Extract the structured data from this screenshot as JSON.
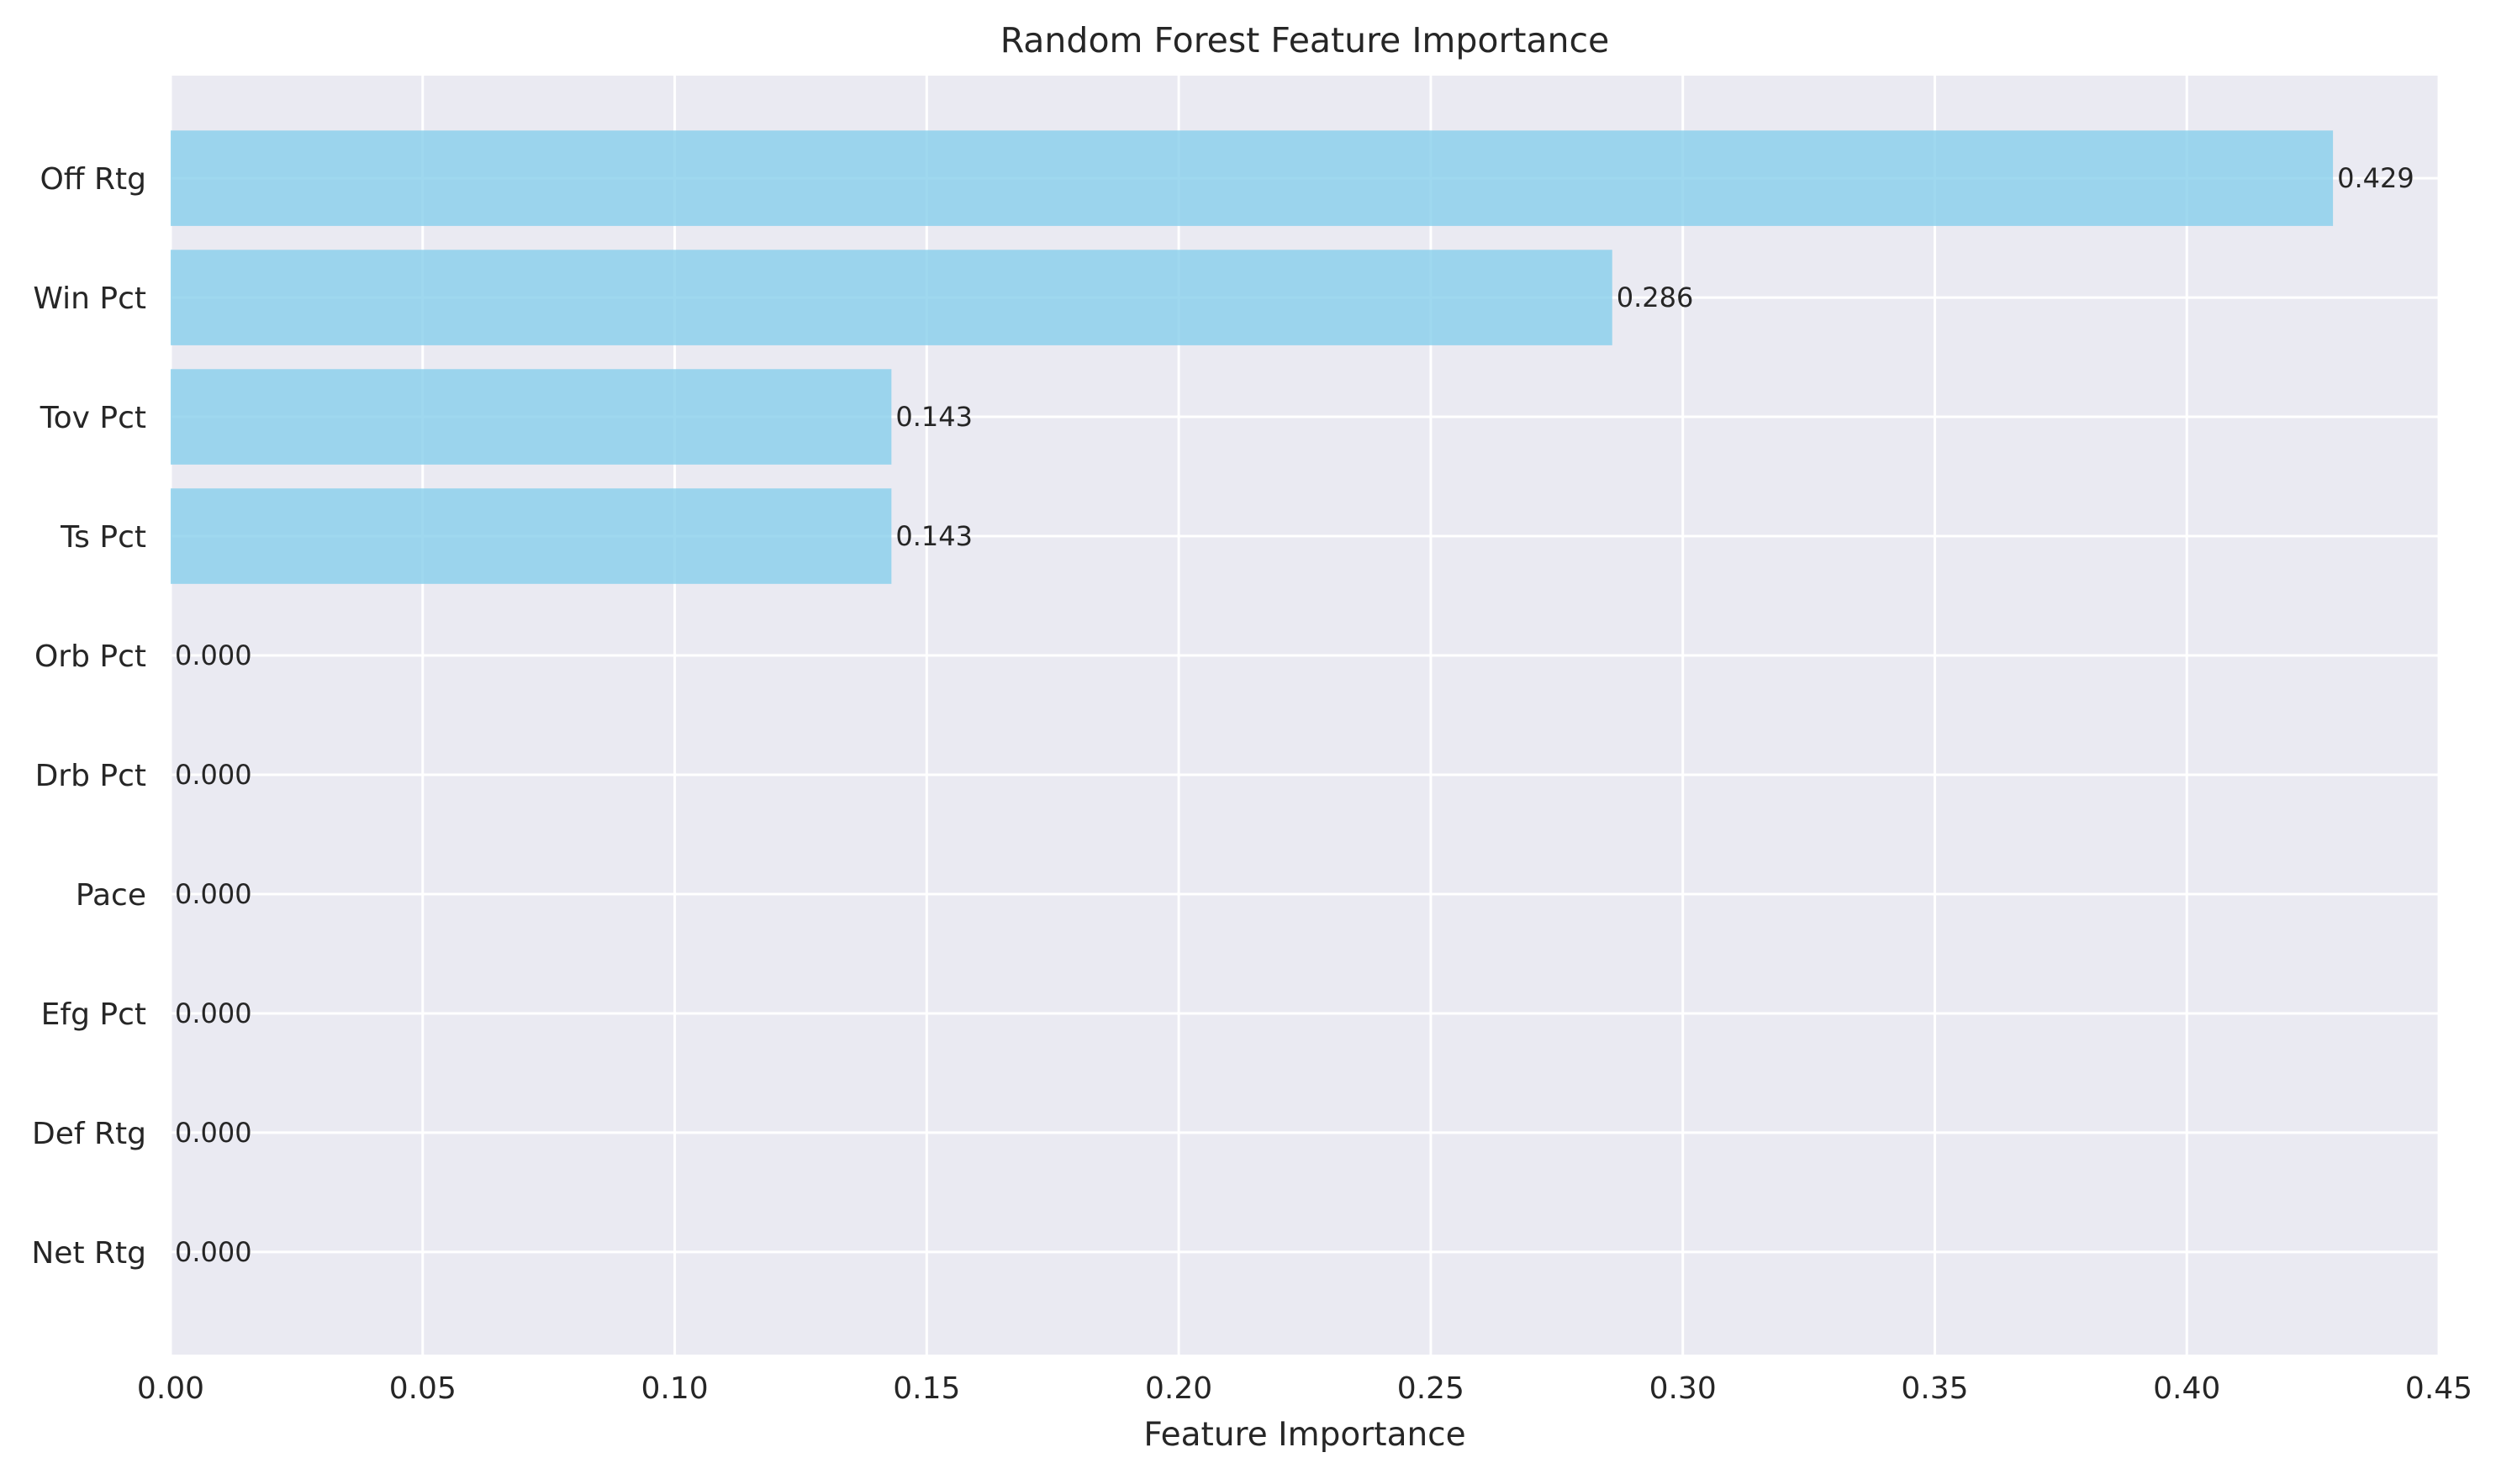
{
  "chart_data": {
    "type": "bar",
    "orientation": "horizontal",
    "title": "Random Forest Feature Importance",
    "xlabel": "Feature Importance",
    "ylabel": "",
    "xlim": [
      0,
      0.45
    ],
    "xticks": [
      "0.00",
      "0.05",
      "0.10",
      "0.15",
      "0.20",
      "0.25",
      "0.30",
      "0.35",
      "0.40",
      "0.45"
    ],
    "categories": [
      "Off Rtg",
      "Win Pct",
      "Tov Pct",
      "Ts Pct",
      "Orb Pct",
      "Drb Pct",
      "Pace",
      "Efg Pct",
      "Def Rtg",
      "Net Rtg"
    ],
    "values": [
      0.429,
      0.286,
      0.143,
      0.143,
      0.0,
      0.0,
      0.0,
      0.0,
      0.0,
      0.0
    ],
    "data_labels": [
      "0.429",
      "0.286",
      "0.143",
      "0.143",
      "0.000",
      "0.000",
      "0.000",
      "0.000",
      "0.000",
      "0.000"
    ],
    "grid": true,
    "colors": {
      "bar": "#87ceeb",
      "background": "#eaeaf2",
      "grid": "#ffffff",
      "text": "#262626"
    }
  }
}
